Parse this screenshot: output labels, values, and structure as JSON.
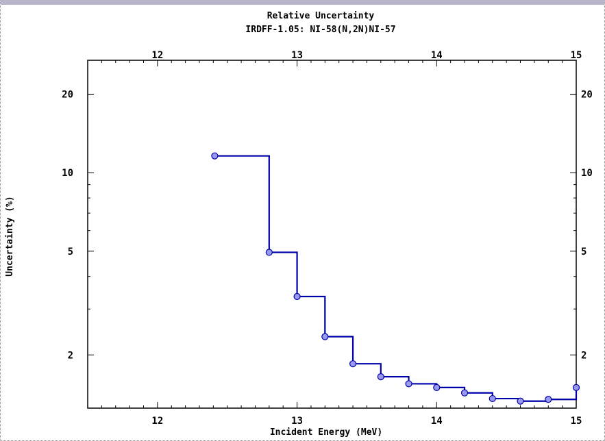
{
  "chart_data": {
    "type": "line",
    "step": true,
    "title": "Relative Uncertainty",
    "subtitle": "IRDFF-1.05: NI-58(N,2N)NI-57",
    "xlabel": "Incident Energy (MeV)",
    "ylabel": "Uncertainty (%)",
    "xscale": "linear",
    "yscale": "log",
    "xlim": [
      11.5,
      15.0
    ],
    "ylim": [
      1.25,
      27
    ],
    "xticks": [
      12,
      13,
      14,
      15
    ],
    "xtick_labels": [
      "12",
      "13",
      "14",
      "15"
    ],
    "yticks": [
      2,
      5,
      10,
      20
    ],
    "ytick_labels": [
      "2",
      "5",
      "10",
      "20"
    ],
    "grid": false,
    "series": [
      {
        "color": "#0000aa",
        "marker_color": "#9999ee",
        "x": [
          12.41,
          12.8,
          13.0,
          13.2,
          13.4,
          13.6,
          13.8,
          14.0,
          14.2,
          14.4,
          14.6,
          14.8,
          15.0
        ],
        "y": [
          11.6,
          4.95,
          3.35,
          2.35,
          1.85,
          1.65,
          1.55,
          1.5,
          1.43,
          1.36,
          1.33,
          1.35,
          1.5
        ]
      }
    ]
  }
}
